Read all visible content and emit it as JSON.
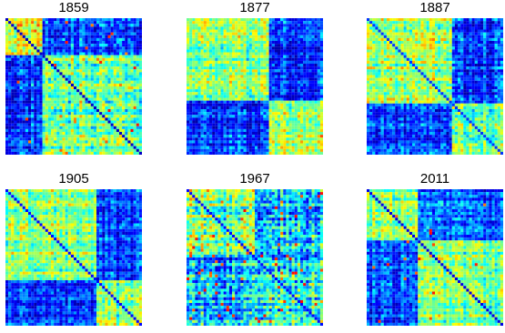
{
  "figure": {
    "background": "#ffffff"
  },
  "colormap": {
    "name": "jet",
    "stops": [
      "#0000a8",
      "#0000ff",
      "#0080ff",
      "#00ffff",
      "#80ff80",
      "#ffff00",
      "#ff8000",
      "#ff0000"
    ]
  },
  "chart_data": [
    {
      "type": "heatmap",
      "title": "1859",
      "grid_size": 48,
      "blocks": [
        {
          "range": [
            0,
            0.28
          ],
          "level": 0.68
        },
        {
          "range": [
            0.28,
            1.0
          ],
          "level": 0.55
        }
      ],
      "off_block_level": 0.2,
      "noise": 0.18,
      "diagonal_level": 0.05,
      "hot_spots": 0.01
    },
    {
      "type": "heatmap",
      "title": "1877",
      "grid_size": 48,
      "blocks": [
        {
          "range": [
            0,
            0.6
          ],
          "level": 0.58
        },
        {
          "range": [
            0.6,
            1.0
          ],
          "level": 0.62
        }
      ],
      "off_block_level": 0.18,
      "noise": 0.17,
      "diagonal_level": 0.55,
      "hot_spots": 0.0
    },
    {
      "type": "heatmap",
      "title": "1887",
      "grid_size": 48,
      "blocks": [
        {
          "range": [
            0,
            0.62
          ],
          "level": 0.6
        },
        {
          "range": [
            0.62,
            1.0
          ],
          "level": 0.55
        }
      ],
      "off_block_level": 0.2,
      "noise": 0.17,
      "diagonal_level": 0.2,
      "hot_spots": 0.0
    },
    {
      "type": "heatmap",
      "title": "1905",
      "grid_size": 48,
      "blocks": [
        {
          "range": [
            0,
            0.66
          ],
          "level": 0.6
        },
        {
          "range": [
            0.66,
            1.0
          ],
          "level": 0.58
        }
      ],
      "off_block_level": 0.2,
      "noise": 0.16,
      "diagonal_level": 0.15,
      "hot_spots": 0.0
    },
    {
      "type": "heatmap",
      "title": "1967",
      "grid_size": 48,
      "blocks": [
        {
          "range": [
            0,
            0.5
          ],
          "level": 0.55
        },
        {
          "range": [
            0.5,
            1.0
          ],
          "level": 0.45
        }
      ],
      "off_block_level": 0.35,
      "noise": 0.22,
      "diagonal_level": 0.15,
      "hot_spots": 0.03
    },
    {
      "type": "heatmap",
      "title": "2011",
      "grid_size": 48,
      "blocks": [
        {
          "range": [
            0,
            0.38
          ],
          "level": 0.58
        },
        {
          "range": [
            0.38,
            1.0
          ],
          "level": 0.55
        }
      ],
      "off_block_level": 0.22,
      "noise": 0.16,
      "diagonal_level": 0.1,
      "hot_spots": 0.01
    }
  ]
}
